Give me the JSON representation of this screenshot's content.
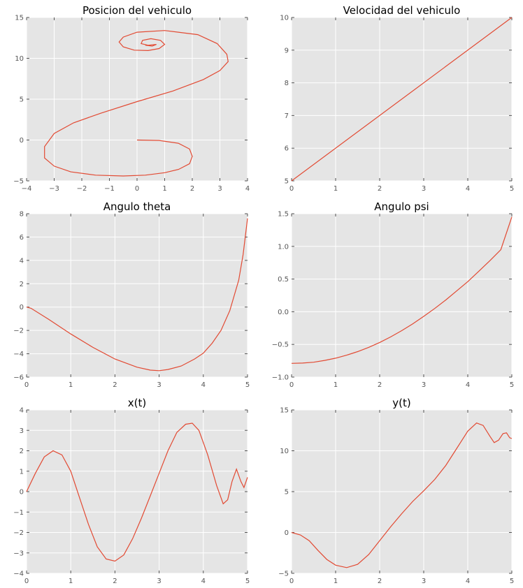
{
  "style": {
    "panel_bg": "#e5e5e5",
    "grid_color": "#ffffff",
    "line_color": "#e24a33",
    "tick_color": "#555555"
  },
  "chart_data": [
    {
      "type": "line",
      "title": "Posicion del vehiculo",
      "xlim": [
        -4,
        4
      ],
      "ylim": [
        -5,
        15
      ],
      "xticks": [
        "−4",
        "−3",
        "−2",
        "−1",
        "0",
        "1",
        "2",
        "3",
        "4"
      ],
      "yticks": [
        "−5",
        "0",
        "5",
        "10",
        "15"
      ],
      "xtick_values": [
        -4,
        -3,
        -2,
        -1,
        0,
        1,
        2,
        3,
        4
      ],
      "ytick_values": [
        -5,
        0,
        5,
        10,
        15
      ],
      "grid": true,
      "series": [
        {
          "x": [
            0,
            0.8,
            1.5,
            1.9,
            2.0,
            1.9,
            1.5,
            1.0,
            0.3,
            -0.5,
            -1.5,
            -2.4,
            -3.0,
            -3.35,
            -3.35,
            -3.0,
            -2.3,
            -1.3,
            0,
            1.3,
            2.4,
            3.0,
            3.3,
            3.25,
            2.9,
            2.2,
            1.0,
            0.0,
            -0.5,
            -0.65,
            -0.5,
            -0.1,
            0.4,
            0.8,
            1.0,
            0.85,
            0.5,
            0.2,
            0.15,
            0.4,
            0.7,
            0.55,
            0.3
          ],
          "y": [
            0,
            -0.05,
            -0.4,
            -1.1,
            -2.0,
            -2.9,
            -3.6,
            -4.0,
            -4.3,
            -4.4,
            -4.3,
            -3.9,
            -3.2,
            -2.2,
            -0.8,
            0.8,
            2.1,
            3.3,
            4.7,
            6.0,
            7.4,
            8.5,
            9.6,
            10.5,
            11.8,
            12.9,
            13.4,
            13.2,
            12.6,
            12.0,
            11.4,
            11.0,
            10.95,
            11.2,
            11.7,
            12.2,
            12.4,
            12.2,
            11.8,
            11.6,
            11.7,
            11.5,
            11.6
          ]
        }
      ]
    },
    {
      "type": "line",
      "title": "Velocidad del vehiculo",
      "xlim": [
        0,
        5
      ],
      "ylim": [
        5,
        10
      ],
      "xticks": [
        "0",
        "1",
        "2",
        "3",
        "4",
        "5"
      ],
      "yticks": [
        "5",
        "6",
        "7",
        "8",
        "9",
        "10"
      ],
      "xtick_values": [
        0,
        1,
        2,
        3,
        4,
        5
      ],
      "ytick_values": [
        5,
        6,
        7,
        8,
        9,
        10
      ],
      "grid": true,
      "series": [
        {
          "x": [
            0,
            5
          ],
          "y": [
            5,
            10
          ]
        }
      ]
    },
    {
      "type": "line",
      "title": "Angulo theta",
      "xlim": [
        0,
        5
      ],
      "ylim": [
        -6,
        8
      ],
      "xticks": [
        "0",
        "1",
        "2",
        "3",
        "4",
        "5"
      ],
      "yticks": [
        "−6",
        "−4",
        "−2",
        "0",
        "2",
        "4",
        "6",
        "8"
      ],
      "xtick_values": [
        0,
        1,
        2,
        3,
        4,
        5
      ],
      "ytick_values": [
        -6,
        -4,
        -2,
        0,
        2,
        4,
        6,
        8
      ],
      "grid": true,
      "series": [
        {
          "x": [
            0,
            0.1,
            0.5,
            1.0,
            1.5,
            2.0,
            2.5,
            2.8,
            3.0,
            3.2,
            3.5,
            3.8,
            4.0,
            4.2,
            4.4,
            4.6,
            4.8,
            4.9,
            5.0
          ],
          "y": [
            0,
            -0.1,
            -1.05,
            -2.3,
            -3.45,
            -4.45,
            -5.15,
            -5.4,
            -5.45,
            -5.35,
            -5.05,
            -4.45,
            -3.95,
            -3.1,
            -2.0,
            -0.3,
            2.3,
            4.5,
            7.6
          ]
        }
      ]
    },
    {
      "type": "line",
      "title": "Angulo psi",
      "xlim": [
        0,
        5
      ],
      "ylim": [
        -1.0,
        1.5
      ],
      "xticks": [
        "0",
        "1",
        "2",
        "3",
        "4",
        "5"
      ],
      "yticks": [
        "−1.0",
        "−0.5",
        "0.0",
        "0.5",
        "1.0",
        "1.5"
      ],
      "xtick_values": [
        0,
        1,
        2,
        3,
        4,
        5
      ],
      "ytick_values": [
        -1.0,
        -0.5,
        0.0,
        0.5,
        1.0,
        1.5
      ],
      "grid": true,
      "series": [
        {
          "x": [
            0,
            0.25,
            0.5,
            0.75,
            1.0,
            1.25,
            1.5,
            1.75,
            2.0,
            2.25,
            2.5,
            2.75,
            3.0,
            3.25,
            3.5,
            3.75,
            4.0,
            4.25,
            4.5,
            4.75,
            5.0
          ],
          "y": [
            -0.79,
            -0.785,
            -0.772,
            -0.745,
            -0.71,
            -0.665,
            -0.61,
            -0.545,
            -0.47,
            -0.385,
            -0.29,
            -0.185,
            -0.07,
            0.05,
            0.18,
            0.32,
            0.46,
            0.62,
            0.78,
            0.95,
            1.45
          ]
        }
      ]
    },
    {
      "type": "line",
      "title": "x(t)",
      "xlim": [
        0,
        5
      ],
      "ylim": [
        -4,
        4
      ],
      "xticks": [
        "0",
        "1",
        "2",
        "3",
        "4",
        "5"
      ],
      "yticks": [
        "−4",
        "−3",
        "−2",
        "−1",
        "0",
        "1",
        "2",
        "3",
        "4"
      ],
      "xtick_values": [
        0,
        1,
        2,
        3,
        4,
        5
      ],
      "ytick_values": [
        -4,
        -3,
        -2,
        -1,
        0,
        1,
        2,
        3,
        4
      ],
      "grid": true,
      "series": [
        {
          "x": [
            0,
            0.2,
            0.4,
            0.6,
            0.8,
            1.0,
            1.2,
            1.4,
            1.6,
            1.8,
            2.0,
            2.2,
            2.4,
            2.6,
            2.8,
            3.0,
            3.2,
            3.4,
            3.6,
            3.75,
            3.9,
            4.1,
            4.3,
            4.45,
            4.55,
            4.65,
            4.75,
            4.85,
            4.92,
            5.0
          ],
          "y": [
            0,
            0.9,
            1.7,
            2.0,
            1.8,
            1.0,
            -0.3,
            -1.6,
            -2.7,
            -3.3,
            -3.4,
            -3.1,
            -2.3,
            -1.3,
            -0.2,
            0.9,
            2.0,
            2.9,
            3.3,
            3.35,
            3.0,
            1.8,
            0.3,
            -0.6,
            -0.4,
            0.5,
            1.1,
            0.5,
            0.2,
            0.7
          ]
        }
      ]
    },
    {
      "type": "line",
      "title": "y(t)",
      "xlim": [
        0,
        5
      ],
      "ylim": [
        -5,
        15
      ],
      "xticks": [
        "0",
        "1",
        "2",
        "3",
        "4",
        "5"
      ],
      "yticks": [
        "−5",
        "0",
        "5",
        "10",
        "15"
      ],
      "xtick_values": [
        0,
        1,
        2,
        3,
        4,
        5
      ],
      "ytick_values": [
        -5,
        0,
        5,
        10,
        15
      ],
      "grid": true,
      "series": [
        {
          "x": [
            0,
            0.2,
            0.4,
            0.6,
            0.8,
            1.0,
            1.25,
            1.5,
            1.75,
            2.0,
            2.25,
            2.5,
            2.75,
            3.0,
            3.25,
            3.5,
            3.75,
            4.0,
            4.2,
            4.35,
            4.5,
            4.6,
            4.7,
            4.8,
            4.88,
            4.95,
            5.0
          ],
          "y": [
            0,
            -0.3,
            -1.0,
            -2.2,
            -3.3,
            -4.0,
            -4.3,
            -3.9,
            -2.7,
            -1.0,
            0.7,
            2.3,
            3.8,
            5.1,
            6.5,
            8.2,
            10.3,
            12.4,
            13.4,
            13.1,
            11.8,
            11.0,
            11.3,
            12.1,
            12.2,
            11.6,
            11.5
          ]
        }
      ]
    }
  ]
}
